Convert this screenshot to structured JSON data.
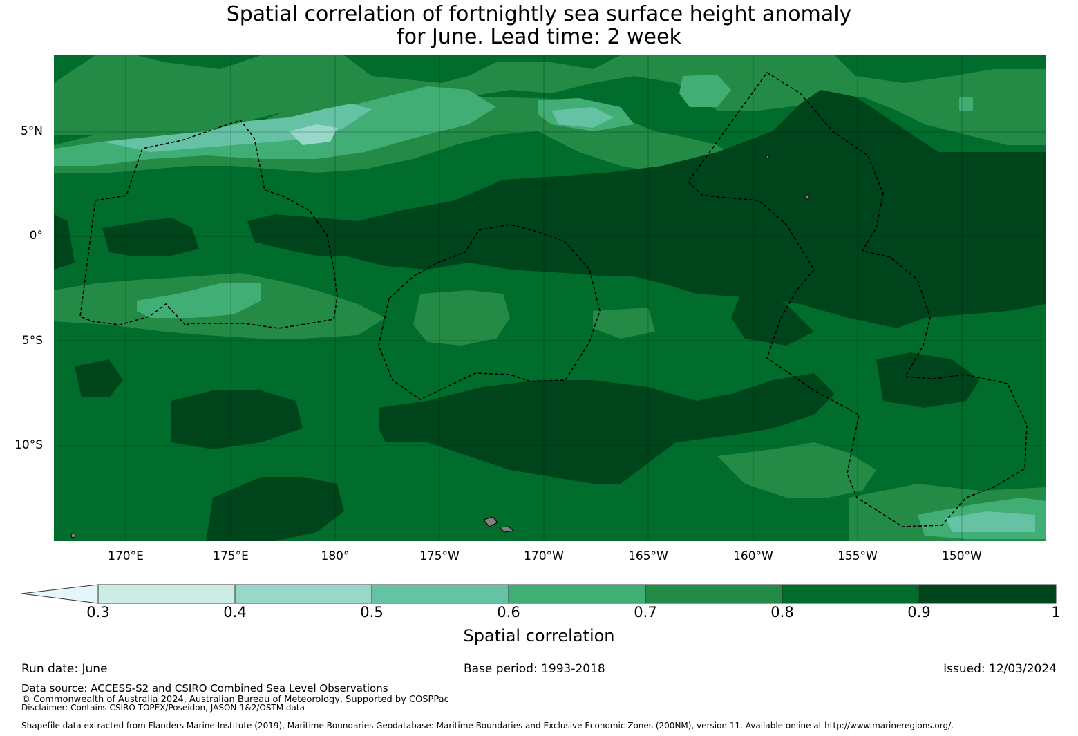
{
  "title": {
    "line1": "Spatial correlation of fortnightly sea surface height anomaly",
    "line2": "for June. Lead time: 2 week"
  },
  "map": {
    "lat_labels": [
      "5°N",
      "0°",
      "5°S",
      "10°S"
    ],
    "lon_labels": [
      "170°E",
      "175°E",
      "180°",
      "175°W",
      "170°W",
      "165°W",
      "160°W",
      "155°W",
      "150°W"
    ],
    "land_color": "#808080",
    "boundary_style": "dashed black"
  },
  "colorbar": {
    "label": "Spatial correlation",
    "ticks": [
      "0.3",
      "0.4",
      "0.5",
      "0.6",
      "0.7",
      "0.8",
      "0.9",
      "1"
    ],
    "colors": [
      "#e5f5f9",
      "#ccece6",
      "#99d8c9",
      "#66c2a4",
      "#41ae76",
      "#238b45",
      "#006d2c",
      "#00441b"
    ],
    "extend": "min"
  },
  "footer": {
    "run_date": "Run date: June",
    "base_period": "Base period: 1993-2018",
    "issued": "Issued: 12/03/2024",
    "data_source": "Data source: ACCESS-S2 and CSIRO Combined Sea Level Observations",
    "copyright": "© Commonwealth of Australia 2024, Australian Bureau of Meteorology, Supported by COSPPac",
    "disclaimer": "Disclaimer: Contains CSIRO TOPEX/Poseidon, JASON-1&2/OSTM data",
    "shapefile": "Shapefile data extracted from Flanders Marine Institute (2019), Maritime Boundaries Geodatabase: Maritime Boundaries and Exclusive Economic Zones (200NM), version 11. Available online at http://www.marineregions.org/."
  }
}
